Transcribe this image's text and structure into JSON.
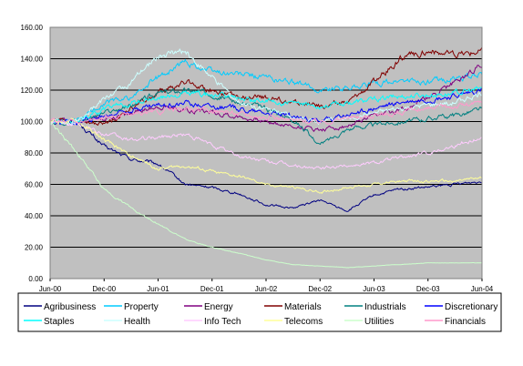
{
  "chart_data": {
    "type": "line",
    "title": "",
    "xlabel": "",
    "ylabel": "",
    "ylim": [
      0,
      160
    ],
    "y_ticks": [
      "0.00",
      "20.00",
      "40.00",
      "60.00",
      "80.00",
      "100.00",
      "120.00",
      "140.00",
      "160.00"
    ],
    "x_ticks": [
      "Jun-00",
      "Dec-00",
      "Jun-01",
      "Dec-01",
      "Jun-02",
      "Dec-02",
      "Jun-03",
      "Dec-03",
      "Jun-04"
    ],
    "grid": "horizontal",
    "plot_background": "#c0c0c0",
    "legend_position": "bottom",
    "series": [
      {
        "name": "Agribusiness",
        "color": "#000080",
        "values": [
          100,
          100,
          84,
          76,
          73,
          60,
          58,
          54,
          47,
          45,
          50,
          43,
          53,
          57,
          58,
          60,
          62
        ]
      },
      {
        "name": "Property",
        "color": "#00ccff",
        "values": [
          100,
          100,
          112,
          115,
          128,
          138,
          132,
          130,
          128,
          125,
          120,
          122,
          124,
          126,
          125,
          127,
          130
        ]
      },
      {
        "name": "Energy",
        "color": "#800080",
        "values": [
          100,
          100,
          102,
          105,
          110,
          108,
          106,
          103,
          100,
          97,
          95,
          97,
          103,
          108,
          115,
          125,
          137
        ]
      },
      {
        "name": "Materials",
        "color": "#800000",
        "values": [
          100,
          100,
          98,
          108,
          118,
          125,
          120,
          115,
          115,
          112,
          110,
          112,
          125,
          140,
          145,
          142,
          145
        ]
      },
      {
        "name": "Industrials",
        "color": "#008080",
        "values": [
          100,
          100,
          105,
          110,
          118,
          120,
          118,
          112,
          108,
          102,
          85,
          95,
          98,
          100,
          102,
          104,
          108
        ]
      },
      {
        "name": "Discretionary",
        "color": "#0000ff",
        "values": [
          100,
          100,
          103,
          108,
          110,
          112,
          110,
          108,
          106,
          103,
          100,
          104,
          108,
          112,
          114,
          116,
          120
        ]
      },
      {
        "name": "Staples",
        "color": "#00ffff",
        "values": [
          100,
          100,
          108,
          112,
          115,
          118,
          117,
          115,
          113,
          111,
          110,
          112,
          114,
          116,
          117,
          118,
          121
        ]
      },
      {
        "name": "Health",
        "color": "#ccffff",
        "values": [
          100,
          100,
          115,
          125,
          142,
          145,
          128,
          112,
          108,
          103,
          100,
          102,
          105,
          108,
          110,
          112,
          118
        ]
      },
      {
        "name": "Info Tech",
        "color": "#ffccff",
        "values": [
          100,
          100,
          92,
          88,
          90,
          92,
          85,
          78,
          75,
          72,
          70,
          72,
          74,
          77,
          80,
          85,
          90
        ]
      },
      {
        "name": "Telecoms",
        "color": "#ffff99",
        "values": [
          100,
          100,
          88,
          78,
          70,
          72,
          68,
          65,
          60,
          58,
          55,
          58,
          60,
          62,
          62,
          62,
          64
        ]
      },
      {
        "name": "Utilities",
        "color": "#ccffcc",
        "values": [
          100,
          80,
          57,
          45,
          35,
          25,
          20,
          16,
          12,
          9,
          8,
          7,
          8,
          9,
          10,
          10,
          10
        ]
      },
      {
        "name": "Financials",
        "color": "#ff99cc",
        "values": [
          100,
          100,
          102,
          104,
          106,
          108,
          107,
          105,
          103,
          101,
          100,
          102,
          104,
          106,
          108,
          110,
          112
        ]
      }
    ]
  }
}
